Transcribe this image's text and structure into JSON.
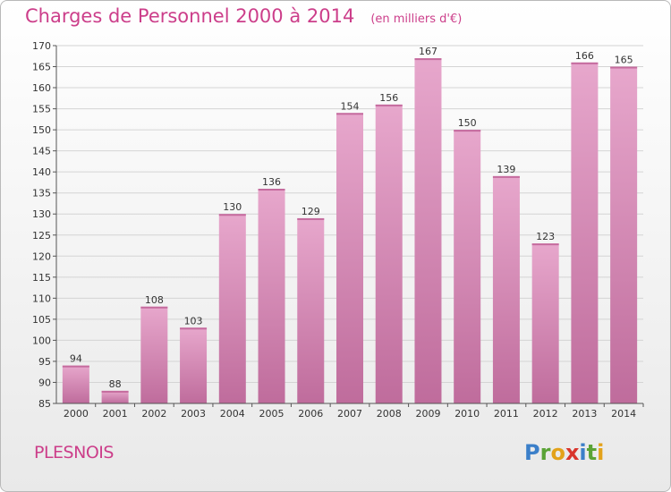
{
  "header": {
    "title": "Charges de Personnel 2000 à 2014",
    "unit": "(en milliers d'€)"
  },
  "footer": {
    "commune": "PLESNOIS",
    "brand": "Proxiti"
  },
  "colors": {
    "title": "#cc3e8a",
    "bar_top": "#e7a7cc",
    "bar_bottom": "#c06a9b",
    "grid": "#d4d4d4"
  },
  "chart_data": {
    "type": "bar",
    "title": "Charges de Personnel 2000 à 2014",
    "subtitle": "(en milliers d'€)",
    "categories": [
      "2000",
      "2001",
      "2002",
      "2003",
      "2004",
      "2005",
      "2006",
      "2007",
      "2008",
      "2009",
      "2010",
      "2011",
      "2012",
      "2013",
      "2014"
    ],
    "values": [
      94,
      88,
      108,
      103,
      130,
      136,
      129,
      154,
      156,
      167,
      150,
      139,
      123,
      166,
      165
    ],
    "ylim": [
      85,
      170
    ],
    "yticks": [
      85,
      90,
      95,
      100,
      105,
      110,
      115,
      120,
      125,
      130,
      135,
      140,
      145,
      150,
      155,
      160,
      165,
      170
    ],
    "grid": true,
    "xlabel": "",
    "ylabel": ""
  }
}
